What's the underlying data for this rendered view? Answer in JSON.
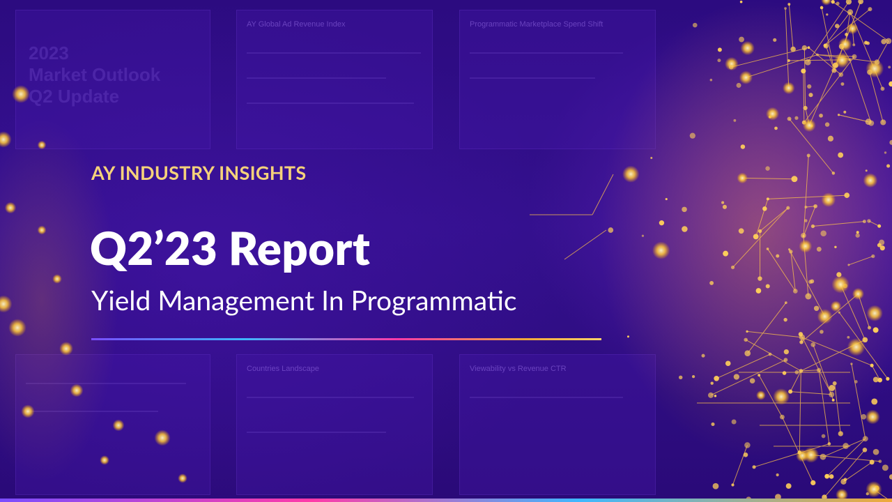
{
  "background_panels": [
    {
      "title": "AY Global Ad Revenue Index"
    },
    {
      "title": "Programmatic Marketplace Spend Shift"
    },
    {
      "title": "Countries Landscape"
    },
    {
      "title": "Viewability vs Revenue CTR"
    }
  ],
  "ghost_heading": "2023\nMarket Outlook\nQ2 Update",
  "hero": {
    "eyebrow": "AY INDUSTRY INSIGHTS",
    "title": "Q2’23 Report",
    "subtitle": "Yield Management In Programmatic"
  },
  "colors": {
    "background": "#2c0b80",
    "eyebrow": "#f5d27a",
    "title": "#ffffff",
    "network_gold": "#ffc83a"
  }
}
